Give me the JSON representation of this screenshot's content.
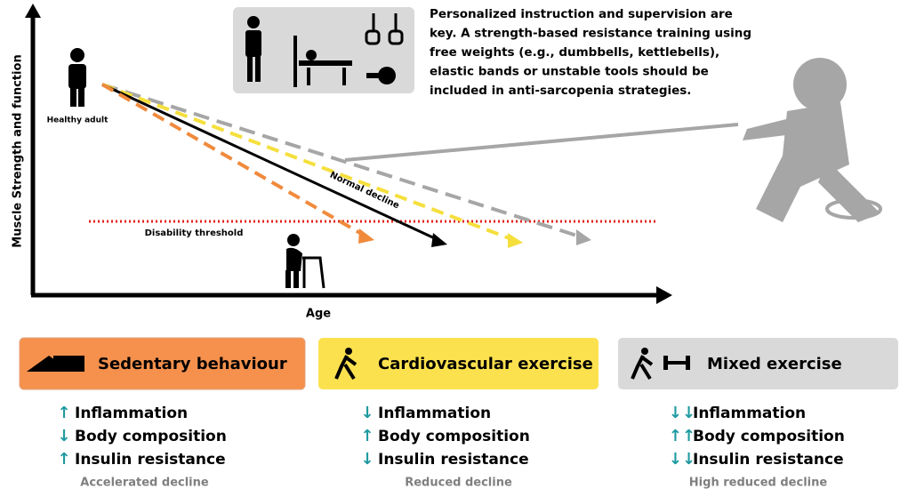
{
  "diagram": {
    "y_axis_label": "Muscle Strength and function",
    "x_axis_label": "Age",
    "healthy_label": "Healthy adult",
    "threshold_label": "Disability threshold",
    "trend_label": "Normal decline"
  },
  "intro_lines": [
    "Personalized instruction and supervision are",
    "key. A strength-based resistance training using",
    "free weights (e.g., dumbbells, kettlebells),",
    "elastic bands or unstable tools should be",
    "included in anti-sarcopenia strategies."
  ],
  "panels": [
    {
      "title": "Sedentary behaviour",
      "items": [
        {
          "arrow": "↑",
          "label": "Inflammation"
        },
        {
          "arrow": "↓",
          "label": "Body composition"
        },
        {
          "arrow": "↑",
          "label": "Insulin resistance"
        }
      ],
      "footer": "Accelerated decline"
    },
    {
      "title": "Cardiovascular exercise",
      "items": [
        {
          "arrow": "↓",
          "label": "Inflammation"
        },
        {
          "arrow": "↑",
          "label": "Body composition"
        },
        {
          "arrow": "↓",
          "label": "Insulin resistance"
        }
      ],
      "footer": "Reduced decline"
    },
    {
      "title": "Mixed exercise",
      "items": [
        {
          "arrow": "↓↓",
          "label": "Inflammation"
        },
        {
          "arrow": "↑↑",
          "label": "Body composition"
        },
        {
          "arrow": "↓↓",
          "label": "Insulin resistance"
        }
      ],
      "footer": "High reduced decline"
    }
  ]
}
